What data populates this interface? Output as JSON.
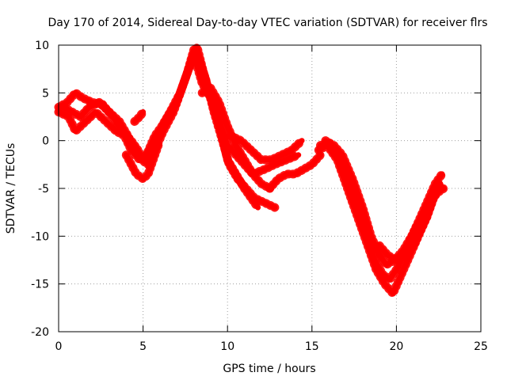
{
  "chart_data": {
    "type": "scatter",
    "title": "Day 170 of 2014, Sidereal Day-to-day VTEC variation (SDTVAR) for receiver flrs",
    "xlabel": "GPS time / hours",
    "ylabel": "SDTVAR / TECUs",
    "xlim": [
      0,
      25
    ],
    "ylim": [
      -20,
      10
    ],
    "xticks": [
      "0",
      "5",
      "10",
      "15",
      "20",
      "25"
    ],
    "yticks": [
      "-20",
      "-15",
      "-10",
      "-5",
      "0",
      "5",
      "10"
    ],
    "grid": true,
    "marker": "+",
    "color": "#ff0000",
    "series": [
      {
        "x": [
          0.0,
          0.5,
          1.0,
          1.4,
          2.0,
          2.6,
          3.2,
          3.8,
          4.3,
          4.7,
          5.0,
          5.4,
          5.8,
          6.3,
          7.0,
          7.6,
          8.0,
          8.3,
          8.7,
          9.2,
          9.7,
          10.1,
          10.6,
          11.1,
          11.6,
          12.2,
          12.8
        ],
        "y": [
          3.5,
          4.0,
          5.0,
          4.5,
          4.0,
          3.8,
          2.5,
          1.0,
          0.0,
          -1.0,
          -2.0,
          -1.0,
          0.0,
          2.0,
          4.0,
          7.0,
          9.5,
          8.5,
          6.5,
          3.0,
          0.0,
          -2.5,
          -4.0,
          -5.0,
          -6.0,
          -6.5,
          -7.0
        ]
      },
      {
        "x": [
          0.0,
          0.6,
          1.0,
          1.6,
          2.2,
          2.8,
          3.4,
          3.9,
          4.3,
          4.8,
          5.2,
          5.7,
          6.1,
          6.6,
          7.2,
          7.8,
          8.2,
          8.6,
          9.1,
          9.6,
          10.0,
          10.5,
          11.0,
          11.4,
          11.8
        ],
        "y": [
          3.0,
          2.5,
          1.0,
          2.0,
          3.0,
          2.0,
          1.0,
          0.5,
          -1.0,
          -2.0,
          -1.5,
          0.5,
          1.5,
          3.0,
          5.0,
          8.0,
          9.8,
          7.0,
          4.0,
          1.0,
          -2.0,
          -3.5,
          -5.0,
          -6.0,
          -7.0
        ]
      },
      {
        "x": [
          0.3,
          0.8,
          1.3,
          1.8,
          2.4,
          3.0,
          3.6,
          4.1,
          4.5,
          4.9,
          5.3,
          5.7,
          6.2,
          6.8,
          7.4,
          8.0,
          8.5,
          9.0,
          9.5,
          10.0,
          10.5,
          11.0,
          11.5,
          12.2,
          12.8,
          13.5,
          14.2
        ],
        "y": [
          3.5,
          3.0,
          2.5,
          3.5,
          4.0,
          3.0,
          2.0,
          0.5,
          -1.0,
          -2.0,
          -2.5,
          -1.0,
          1.0,
          3.0,
          6.0,
          9.0,
          6.0,
          4.5,
          2.0,
          -0.5,
          -1.5,
          -2.5,
          -3.5,
          -3.0,
          -2.5,
          -2.0,
          -1.5
        ]
      },
      {
        "x": [
          4.0,
          4.3,
          4.6,
          5.0,
          5.3,
          5.6,
          5.9
        ],
        "y": [
          -1.5,
          -2.5,
          -3.5,
          -4.0,
          -3.5,
          -2.0,
          -0.5
        ]
      },
      {
        "x": [
          4.5,
          4.8,
          5.0
        ],
        "y": [
          2.0,
          2.5,
          3.0
        ]
      },
      {
        "x": [
          8.5,
          9.0,
          9.5,
          10.0,
          10.5,
          11.0,
          11.5,
          12.0,
          12.5
        ],
        "y": [
          5.0,
          5.5,
          4.0,
          1.5,
          -0.5,
          -2.0,
          -3.5,
          -4.5,
          -5.0
        ]
      },
      {
        "x": [
          10.2,
          10.8,
          11.4,
          12.0,
          12.6,
          13.2,
          13.8,
          14.4
        ],
        "y": [
          0.5,
          0.0,
          -1.0,
          -2.0,
          -2.0,
          -1.5,
          -1.0,
          0.0
        ]
      },
      {
        "x": [
          12.5,
          13.0,
          13.5,
          14.0,
          14.5,
          15.0,
          15.5
        ],
        "y": [
          -5.0,
          -4.0,
          -3.5,
          -3.5,
          -3.0,
          -2.5,
          -1.5
        ]
      },
      {
        "x": [
          15.5,
          16.0,
          16.4,
          17.0,
          17.6,
          18.2,
          18.7,
          19.2,
          19.6,
          20.0,
          20.4,
          20.8,
          21.2,
          21.6,
          22.0,
          22.4,
          22.8
        ],
        "y": [
          -0.5,
          -0.2,
          -1.0,
          -3.5,
          -6.5,
          -9.5,
          -12.5,
          -14.0,
          -14.5,
          -13.5,
          -12.0,
          -10.5,
          -9.0,
          -8.0,
          -6.5,
          -5.5,
          -5.0
        ]
      },
      {
        "x": [
          15.4,
          15.9,
          16.5,
          17.1,
          17.7,
          18.3,
          18.8,
          19.3,
          19.8,
          20.3,
          20.8,
          21.3,
          21.8,
          22.2,
          22.6
        ],
        "y": [
          -1.0,
          -0.5,
          -2.0,
          -5.0,
          -8.0,
          -11.0,
          -13.5,
          -15.0,
          -16.0,
          -14.0,
          -12.0,
          -10.0,
          -8.0,
          -6.0,
          -4.5
        ]
      },
      {
        "x": [
          15.8,
          16.3,
          16.8,
          17.4,
          18.0,
          18.5,
          19.0,
          19.4,
          19.9,
          20.4,
          20.9,
          21.3,
          21.8,
          22.3,
          22.7
        ],
        "y": [
          0.0,
          -0.5,
          -1.5,
          -4.0,
          -7.0,
          -10.0,
          -12.0,
          -13.0,
          -12.5,
          -11.5,
          -10.0,
          -8.5,
          -6.5,
          -4.5,
          -3.5
        ]
      },
      {
        "x": [
          19.0,
          19.5,
          20.0,
          20.5,
          21.0,
          21.4,
          21.8,
          22.2,
          22.6
        ],
        "y": [
          -11.0,
          -12.0,
          -12.5,
          -12.0,
          -11.0,
          -9.5,
          -8.0,
          -6.0,
          -4.5
        ]
      }
    ]
  }
}
